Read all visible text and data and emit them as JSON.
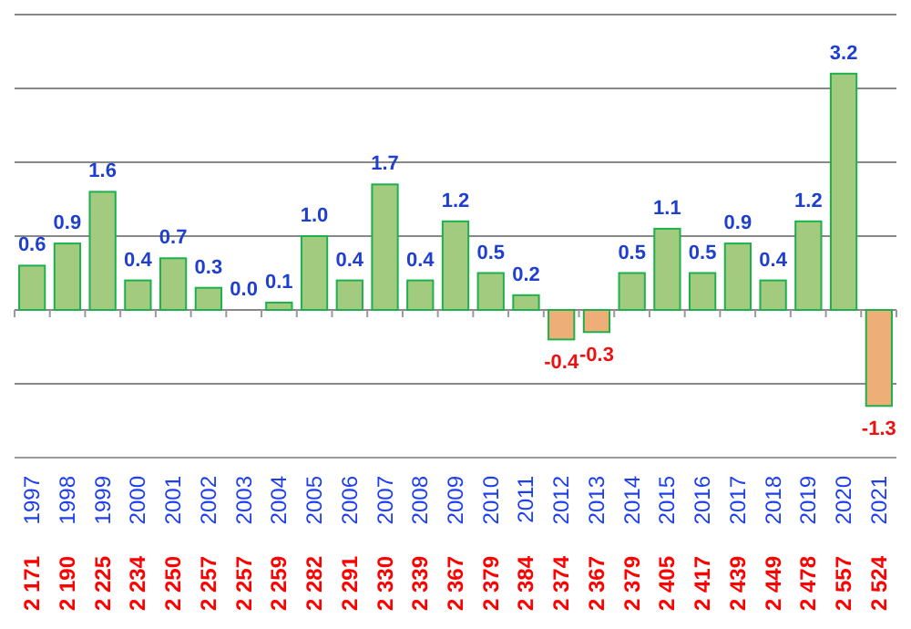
{
  "chart_data": {
    "type": "bar",
    "categories": [
      "1997",
      "1998",
      "1999",
      "2000",
      "2001",
      "2002",
      "2003",
      "2004",
      "2005",
      "2006",
      "2007",
      "2008",
      "2009",
      "2010",
      "2011",
      "2012",
      "2013",
      "2014",
      "2015",
      "2016",
      "2017",
      "2018",
      "2019",
      "2020",
      "2021"
    ],
    "values": [
      0.6,
      0.9,
      1.6,
      0.4,
      0.7,
      0.3,
      0.0,
      0.1,
      1.0,
      0.4,
      1.7,
      0.4,
      1.2,
      0.5,
      0.2,
      -0.4,
      -0.3,
      0.5,
      1.1,
      0.5,
      0.9,
      0.4,
      1.2,
      3.2,
      -1.3
    ],
    "colors": [
      "#a3cb7f",
      "#a3cb7f",
      "#a3cb7f",
      "#a3cb7f",
      "#a3cb7f",
      "#a3cb7f",
      "#a3cb7f",
      "#a3cb7f",
      "#a3cb7f",
      "#a3cb7f",
      "#a3cb7f",
      "#a3cb7f",
      "#a3cb7f",
      "#a3cb7f",
      "#a3cb7f",
      "#eeae78",
      "#eeae78",
      "#a3cb7f",
      "#a3cb7f",
      "#a3cb7f",
      "#a3cb7f",
      "#a3cb7f",
      "#a3cb7f",
      "#a3cb7f",
      "#eeae78"
    ],
    "ylim": [
      -2,
      4
    ],
    "yticks": [
      {
        "value": -2,
        "label": null
      },
      {
        "value": -1,
        "label": null
      },
      {
        "value": 0,
        "label": null
      },
      {
        "value": 1,
        "label": null
      },
      {
        "value": 2,
        "label": null
      },
      {
        "value": 3,
        "label": null
      },
      {
        "value": 4,
        "label": null
      }
    ],
    "tick_labels": "x",
    "grid": "y",
    "value_labels": [
      "0.6",
      "0.9",
      "1.6",
      "0.4",
      "0.7",
      "0.3",
      "0.0",
      "0.1",
      "1.0",
      "0.4",
      "1.7",
      "0.4",
      "1.2",
      "0.5",
      "0.2",
      "-0.4",
      "-0.3",
      "0.5",
      "1.1",
      "0.5",
      "0.9",
      "0.4",
      "1.2",
      "3.2",
      "-1.3"
    ],
    "annotations": [
      "2 171",
      "2 190",
      "2 225",
      "2 234",
      "2 250",
      "2 257",
      "2 257",
      "2 259",
      "2 282",
      "2 291",
      "2 330",
      "2 339",
      "2 367",
      "2 379",
      "2 384",
      "2 374",
      "2 367",
      "2 379",
      "2 405",
      "2 417",
      "2 439",
      "2 449",
      "2 478",
      "2 557",
      "2 524"
    ]
  }
}
